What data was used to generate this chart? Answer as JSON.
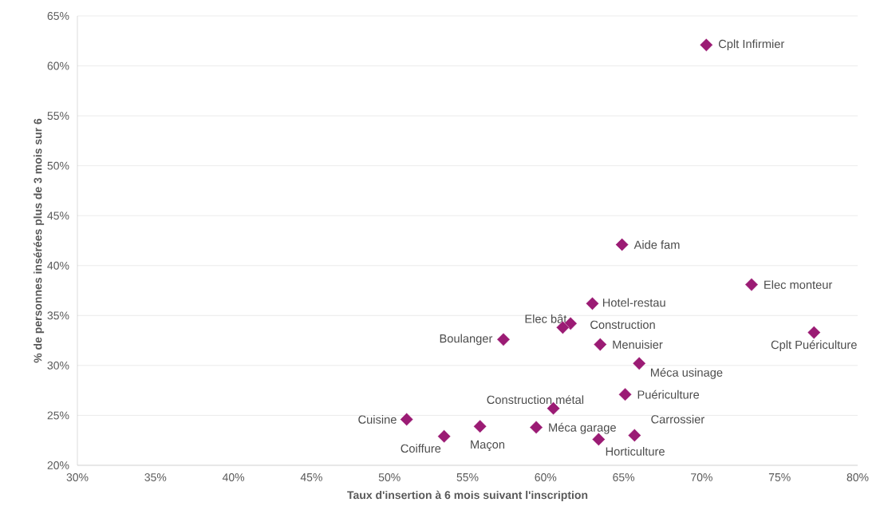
{
  "chart_data": {
    "type": "scatter",
    "xlabel": "Taux d'insertion à 6 mois suivant l'inscription",
    "ylabel": "% de personnes insérées plus de 3 mois sur 6",
    "series": [
      {
        "color": "#9b1b74",
        "x": [
          70.3,
          64.9,
          73.2,
          77.2,
          63.0,
          61.6,
          61.1,
          57.3,
          63.5,
          66.0,
          65.1,
          60.5,
          51.1,
          55.8,
          59.4,
          53.5,
          63.4,
          65.7
        ],
        "values": [
          62.1,
          42.1,
          38.1,
          33.3,
          36.2,
          34.2,
          33.8,
          32.6,
          32.1,
          30.2,
          27.1,
          25.7,
          24.6,
          23.9,
          23.8,
          22.9,
          22.6,
          23.0
        ]
      }
    ],
    "xlim": [
      30,
      80
    ],
    "ylim": [
      20,
      65
    ],
    "xticks": [
      {
        "value": 30,
        "label": "30%"
      },
      {
        "value": 35,
        "label": "35%"
      },
      {
        "value": 40,
        "label": "40%"
      },
      {
        "value": 45,
        "label": "45%"
      },
      {
        "value": 50,
        "label": "50%"
      },
      {
        "value": 55,
        "label": "55%"
      },
      {
        "value": 60,
        "label": "60%"
      },
      {
        "value": 65,
        "label": "65%"
      },
      {
        "value": 70,
        "label": "70%"
      },
      {
        "value": 75,
        "label": "75%"
      },
      {
        "value": 80,
        "label": "80%"
      }
    ],
    "yticks": [
      {
        "value": 20,
        "label": "20%"
      },
      {
        "value": 25,
        "label": "25%"
      },
      {
        "value": 30,
        "label": "30%"
      },
      {
        "value": 35,
        "label": "35%"
      },
      {
        "value": 40,
        "label": "40%"
      },
      {
        "value": 45,
        "label": "45%"
      },
      {
        "value": 50,
        "label": "50%"
      },
      {
        "value": 55,
        "label": "55%"
      },
      {
        "value": 60,
        "label": "60%"
      },
      {
        "value": 65,
        "label": "65%"
      }
    ],
    "annotations": [
      {
        "text": "Cplt Infirmier",
        "x": 70.3,
        "y": 62.1
      },
      {
        "text": "Aide fam",
        "x": 64.9,
        "y": 42.1
      },
      {
        "text": "Elec monteur",
        "x": 73.2,
        "y": 38.1
      },
      {
        "text": "Cplt Puériculture",
        "x": 77.2,
        "y": 33.3
      },
      {
        "text": "Hotel-restau",
        "x": 63.0,
        "y": 36.2
      },
      {
        "text": "Construction",
        "x": 61.6,
        "y": 34.2
      },
      {
        "text": "Elec bât",
        "x": 61.1,
        "y": 33.8
      },
      {
        "text": "Boulanger",
        "x": 57.3,
        "y": 32.6
      },
      {
        "text": "Menuisier",
        "x": 63.5,
        "y": 32.1
      },
      {
        "text": "Méca usinage",
        "x": 66.0,
        "y": 30.2
      },
      {
        "text": "Puériculture",
        "x": 65.1,
        "y": 27.1
      },
      {
        "text": "Construction métal",
        "x": 60.5,
        "y": 25.7
      },
      {
        "text": "Cuisine",
        "x": 51.1,
        "y": 24.6
      },
      {
        "text": "Maçon",
        "x": 55.8,
        "y": 23.9
      },
      {
        "text": "Méca garage",
        "x": 59.4,
        "y": 23.8
      },
      {
        "text": "Coiffure",
        "x": 53.5,
        "y": 22.9
      },
      {
        "text": "Horticulture",
        "x": 63.4,
        "y": 22.6
      },
      {
        "text": "Carrossier",
        "x": 65.7,
        "y": 23.0
      }
    ],
    "grid": "y",
    "marker": "diamond"
  }
}
